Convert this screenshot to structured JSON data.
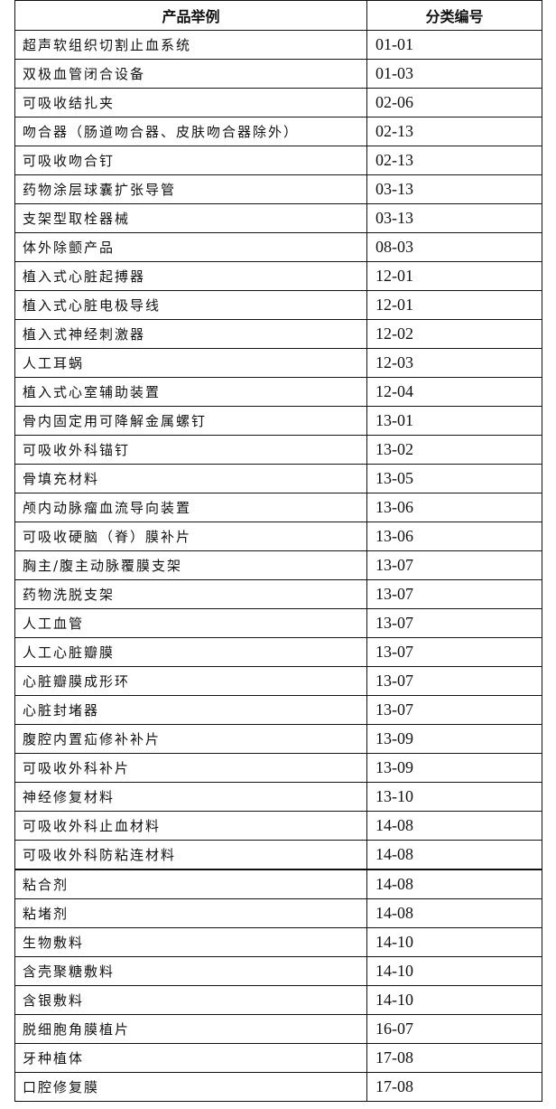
{
  "table": {
    "headers": [
      "产品举例",
      "分类编号"
    ],
    "rows": [
      {
        "name": "超声软组织切割止血系统",
        "code": "01-01"
      },
      {
        "name": "双极血管闭合设备",
        "code": "01-03"
      },
      {
        "name": "可吸收结扎夹",
        "code": "02-06"
      },
      {
        "name": "吻合器（肠道吻合器、皮肤吻合器除外）",
        "code": "02-13"
      },
      {
        "name": "可吸收吻合钉",
        "code": "02-13"
      },
      {
        "name": "药物涂层球囊扩张导管",
        "code": "03-13"
      },
      {
        "name": "支架型取栓器械",
        "code": "03-13"
      },
      {
        "name": "体外除颤产品",
        "code": "08-03"
      },
      {
        "name": "植入式心脏起搏器",
        "code": "12-01"
      },
      {
        "name": "植入式心脏电极导线",
        "code": "12-01"
      },
      {
        "name": "植入式神经刺激器",
        "code": "12-02"
      },
      {
        "name": "人工耳蜗",
        "code": "12-03"
      },
      {
        "name": "植入式心室辅助装置",
        "code": "12-04"
      },
      {
        "name": "骨内固定用可降解金属螺钉",
        "code": "13-01"
      },
      {
        "name": "可吸收外科锚钉",
        "code": "13-02"
      },
      {
        "name": "骨填充材料",
        "code": "13-05"
      },
      {
        "name": "颅内动脉瘤血流导向装置",
        "code": "13-06"
      },
      {
        "name": "可吸收硬脑（脊）膜补片",
        "code": "13-06"
      },
      {
        "name": "胸主/腹主动脉覆膜支架",
        "code": "13-07"
      },
      {
        "name": "药物洗脱支架",
        "code": "13-07"
      },
      {
        "name": "人工血管",
        "code": "13-07"
      },
      {
        "name": "人工心脏瓣膜",
        "code": "13-07"
      },
      {
        "name": "心脏瓣膜成形环",
        "code": "13-07"
      },
      {
        "name": "心脏封堵器",
        "code": "13-07"
      },
      {
        "name": "腹腔内置疝修补补片",
        "code": "13-09"
      },
      {
        "name": "可吸收外科补片",
        "code": "13-09"
      },
      {
        "name": "神经修复材料",
        "code": "13-10"
      },
      {
        "name": "可吸收外科止血材料",
        "code": "14-08"
      },
      {
        "name": "可吸收外科防粘连材料",
        "code": "14-08"
      },
      {
        "name": "粘合剂",
        "code": "14-08"
      },
      {
        "name": "粘堵剂",
        "code": "14-08"
      },
      {
        "name": "生物敷料",
        "code": "14-10"
      },
      {
        "name": "含壳聚糖敷料",
        "code": "14-10"
      },
      {
        "name": "含银敷料",
        "code": "14-10"
      },
      {
        "name": "脱细胞角膜植片",
        "code": "16-07"
      },
      {
        "name": "牙种植体",
        "code": "17-08"
      },
      {
        "name": "口腔修复膜",
        "code": "17-08"
      }
    ]
  }
}
